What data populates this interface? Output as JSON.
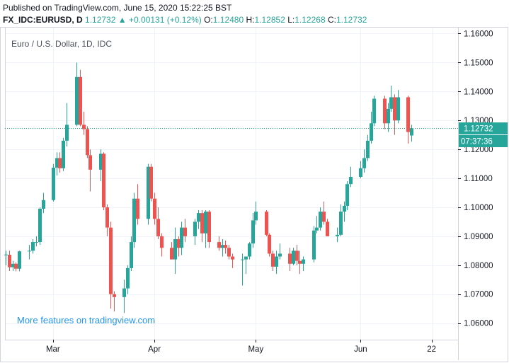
{
  "header": {
    "published": "Published on TradingView.com, June 15, 2020 15:22:25 BST",
    "symbol": "FX_IDC:EURUSD, D",
    "last": "1.12732",
    "change_arrow": "▲",
    "change": "+0.00131 (+0.12%)",
    "o_label": "O:",
    "o_value": "1.12480",
    "h_label": "H:",
    "h_value": "1.12852",
    "l_label": "L:",
    "l_value": "1.12268",
    "c_label": "C:",
    "c_value": "1.12732"
  },
  "promo": "More features on tradingview.com",
  "colors": {
    "up": "#26a69a",
    "down": "#ef5350",
    "grid": "#f0f3fa",
    "axis": "#131722",
    "promo": "#2196f3"
  },
  "chart_data": {
    "type": "candlestick",
    "title": "Euro / U.S. Dollar, 1D, IDC",
    "ylim": [
      1.0543,
      1.1623
    ],
    "y_ticks": [
      "1.16000",
      "1.15000",
      "1.14000",
      "1.13000",
      "1.12000",
      "1.11000",
      "1.10000",
      "1.09000",
      "1.08000",
      "1.07000",
      "1.06000"
    ],
    "y_tick_values": [
      1.16,
      1.15,
      1.14,
      1.13,
      1.12,
      1.11,
      1.1,
      1.09,
      1.08,
      1.07,
      1.06
    ],
    "x_ticks": [
      "Mar",
      "Apr",
      "May",
      "Jun",
      "22"
    ],
    "x_tick_dates": [
      "2020-03-02",
      "2020-04-01",
      "2020-05-01",
      "2020-06-01",
      "2020-06-22"
    ],
    "last_price": "1.12732",
    "last_price_value": 1.12732,
    "countdown": "07:37:36",
    "candles": [
      {
        "date": "2020-02-17",
        "o": 1.0836,
        "h": 1.085,
        "l": 1.08,
        "c": 1.0837
      },
      {
        "date": "2020-02-18",
        "o": 1.0836,
        "h": 1.085,
        "l": 1.078,
        "c": 1.0793
      },
      {
        "date": "2020-02-19",
        "o": 1.0793,
        "h": 1.0815,
        "l": 1.078,
        "c": 1.0805
      },
      {
        "date": "2020-02-20",
        "o": 1.0805,
        "h": 1.081,
        "l": 1.0779,
        "c": 1.0788
      },
      {
        "date": "2020-02-21",
        "o": 1.0788,
        "h": 1.085,
        "l": 1.0779,
        "c": 1.0848
      },
      {
        "date": "2020-02-24",
        "o": 1.0848,
        "h": 1.087,
        "l": 1.082,
        "c": 1.085
      },
      {
        "date": "2020-02-25",
        "o": 1.085,
        "h": 1.089,
        "l": 1.084,
        "c": 1.088
      },
      {
        "date": "2020-02-26",
        "o": 1.088,
        "h": 1.09,
        "l": 1.0865,
        "c": 1.088
      },
      {
        "date": "2020-02-27",
        "o": 1.088,
        "h": 1.1,
        "l": 1.087,
        "c": 1.0995
      },
      {
        "date": "2020-02-28",
        "o": 1.0995,
        "h": 1.105,
        "l": 1.098,
        "c": 1.1025
      },
      {
        "date": "2020-03-02",
        "o": 1.1025,
        "h": 1.115,
        "l": 1.102,
        "c": 1.1137
      },
      {
        "date": "2020-03-03",
        "o": 1.1137,
        "h": 1.119,
        "l": 1.111,
        "c": 1.117
      },
      {
        "date": "2020-03-04",
        "o": 1.117,
        "h": 1.119,
        "l": 1.112,
        "c": 1.1135
      },
      {
        "date": "2020-03-05",
        "o": 1.1135,
        "h": 1.124,
        "l": 1.1125,
        "c": 1.123
      },
      {
        "date": "2020-03-06",
        "o": 1.123,
        "h": 1.136,
        "l": 1.121,
        "c": 1.1285
      },
      {
        "date": "2020-03-09",
        "o": 1.1285,
        "h": 1.15,
        "l": 1.128,
        "c": 1.145
      },
      {
        "date": "2020-03-10",
        "o": 1.145,
        "h": 1.1475,
        "l": 1.128,
        "c": 1.1285
      },
      {
        "date": "2020-03-11",
        "o": 1.1285,
        "h": 1.133,
        "l": 1.125,
        "c": 1.127
      },
      {
        "date": "2020-03-12",
        "o": 1.127,
        "h": 1.128,
        "l": 1.117,
        "c": 1.118
      },
      {
        "date": "2020-03-13",
        "o": 1.118,
        "h": 1.12,
        "l": 1.1055,
        "c": 1.113
      },
      {
        "date": "2020-03-16",
        "o": 1.113,
        "h": 1.12,
        "l": 1.109,
        "c": 1.1185
      },
      {
        "date": "2020-03-17",
        "o": 1.1185,
        "h": 1.119,
        "l": 1.099,
        "c": 1.1
      },
      {
        "date": "2020-03-18",
        "o": 1.1,
        "h": 1.101,
        "l": 1.09,
        "c": 1.093
      },
      {
        "date": "2020-03-19",
        "o": 1.093,
        "h": 1.095,
        "l": 1.065,
        "c": 1.07
      },
      {
        "date": "2020-03-20",
        "o": 1.07,
        "h": 1.071,
        "l": 1.064,
        "c": 1.069
      },
      {
        "date": "2020-03-23",
        "o": 1.069,
        "h": 1.075,
        "l": 1.0635,
        "c": 1.072
      },
      {
        "date": "2020-03-24",
        "o": 1.072,
        "h": 1.08,
        "l": 1.07,
        "c": 1.079
      },
      {
        "date": "2020-03-25",
        "o": 1.079,
        "h": 1.09,
        "l": 1.078,
        "c": 1.088
      },
      {
        "date": "2020-03-26",
        "o": 1.088,
        "h": 1.105,
        "l": 1.086,
        "c": 1.103
      },
      {
        "date": "2020-03-27",
        "o": 1.103,
        "h": 1.108,
        "l": 1.094,
        "c": 1.096
      },
      {
        "date": "2020-03-30",
        "o": 1.096,
        "h": 1.115,
        "l": 1.094,
        "c": 1.114
      },
      {
        "date": "2020-03-31",
        "o": 1.114,
        "h": 1.115,
        "l": 1.102,
        "c": 1.103
      },
      {
        "date": "2020-04-01",
        "o": 1.103,
        "h": 1.105,
        "l": 1.094,
        "c": 1.096
      },
      {
        "date": "2020-04-02",
        "o": 1.096,
        "h": 1.1,
        "l": 1.089,
        "c": 1.09
      },
      {
        "date": "2020-04-03",
        "o": 1.09,
        "h": 1.091,
        "l": 1.083,
        "c": 1.086
      },
      {
        "date": "2020-04-06",
        "o": 1.086,
        "h": 1.088,
        "l": 1.082,
        "c": 1.082
      },
      {
        "date": "2020-04-07",
        "o": 1.082,
        "h": 1.093,
        "l": 1.077,
        "c": 1.089
      },
      {
        "date": "2020-04-08",
        "o": 1.089,
        "h": 1.09,
        "l": 1.083,
        "c": 1.086
      },
      {
        "date": "2020-04-09",
        "o": 1.086,
        "h": 1.095,
        "l": 1.0835,
        "c": 1.093
      },
      {
        "date": "2020-04-10",
        "o": 1.093,
        "h": 1.096,
        "l": 1.088,
        "c": 1.09
      },
      {
        "date": "2020-04-13",
        "o": 1.09,
        "h": 1.096,
        "l": 1.087,
        "c": 1.095
      },
      {
        "date": "2020-04-14",
        "o": 1.095,
        "h": 1.099,
        "l": 1.0925,
        "c": 1.098
      },
      {
        "date": "2020-04-15",
        "o": 1.098,
        "h": 1.099,
        "l": 1.088,
        "c": 1.091
      },
      {
        "date": "2020-04-16",
        "o": 1.091,
        "h": 1.099,
        "l": 1.086,
        "c": 1.0985
      },
      {
        "date": "2020-04-17",
        "o": 1.0985,
        "h": 1.099,
        "l": 1.086,
        "c": 1.088
      },
      {
        "date": "2020-04-20",
        "o": 1.088,
        "h": 1.09,
        "l": 1.085,
        "c": 1.086
      },
      {
        "date": "2020-04-21",
        "o": 1.086,
        "h": 1.089,
        "l": 1.083,
        "c": 1.087
      },
      {
        "date": "2020-04-22",
        "o": 1.087,
        "h": 1.0885,
        "l": 1.084,
        "c": 1.086
      },
      {
        "date": "2020-04-23",
        "o": 1.086,
        "h": 1.087,
        "l": 1.082,
        "c": 1.083
      },
      {
        "date": "2020-04-24",
        "o": 1.083,
        "h": 1.084,
        "l": 1.079,
        "c": 1.082
      },
      {
        "date": "2020-04-27",
        "o": 1.082,
        "h": 1.084,
        "l": 1.073,
        "c": 1.082
      },
      {
        "date": "2020-04-28",
        "o": 1.082,
        "h": 1.083,
        "l": 1.077,
        "c": 1.083
      },
      {
        "date": "2020-04-29",
        "o": 1.083,
        "h": 1.088,
        "l": 1.082,
        "c": 1.0875
      },
      {
        "date": "2020-04-30",
        "o": 1.0875,
        "h": 1.098,
        "l": 1.086,
        "c": 1.0955
      },
      {
        "date": "2020-05-01",
        "o": 1.0955,
        "h": 1.102,
        "l": 1.094,
        "c": 1.0985
      },
      {
        "date": "2020-05-04",
        "o": 1.0985,
        "h": 1.099,
        "l": 1.09,
        "c": 1.0905
      },
      {
        "date": "2020-05-05",
        "o": 1.0905,
        "h": 1.091,
        "l": 1.083,
        "c": 1.084
      },
      {
        "date": "2020-05-06",
        "o": 1.084,
        "h": 1.085,
        "l": 1.078,
        "c": 1.0795
      },
      {
        "date": "2020-05-07",
        "o": 1.0795,
        "h": 1.085,
        "l": 1.077,
        "c": 1.083
      },
      {
        "date": "2020-05-08",
        "o": 1.083,
        "h": 1.0875,
        "l": 1.082,
        "c": 1.084
      },
      {
        "date": "2020-05-11",
        "o": 1.084,
        "h": 1.086,
        "l": 1.078,
        "c": 1.0805
      },
      {
        "date": "2020-05-12",
        "o": 1.0805,
        "h": 1.086,
        "l": 1.08,
        "c": 1.085
      },
      {
        "date": "2020-05-13",
        "o": 1.085,
        "h": 1.087,
        "l": 1.08,
        "c": 1.0815
      },
      {
        "date": "2020-05-14",
        "o": 1.0815,
        "h": 1.085,
        "l": 1.077,
        "c": 1.0805
      },
      {
        "date": "2020-05-15",
        "o": 1.0805,
        "h": 1.083,
        "l": 1.078,
        "c": 1.082
      },
      {
        "date": "2020-05-18",
        "o": 1.082,
        "h": 1.0935,
        "l": 1.081,
        "c": 1.092
      },
      {
        "date": "2020-05-19",
        "o": 1.092,
        "h": 1.097,
        "l": 1.091,
        "c": 1.093
      },
      {
        "date": "2020-05-20",
        "o": 1.093,
        "h": 1.1,
        "l": 1.092,
        "c": 1.0985
      },
      {
        "date": "2020-05-21",
        "o": 1.0985,
        "h": 1.102,
        "l": 1.094,
        "c": 1.095
      },
      {
        "date": "2020-05-22",
        "o": 1.095,
        "h": 1.096,
        "l": 1.09,
        "c": 1.09
      },
      {
        "date": "2020-05-25",
        "o": 1.09,
        "h": 1.093,
        "l": 1.088,
        "c": 1.0905
      },
      {
        "date": "2020-05-26",
        "o": 1.0905,
        "h": 1.101,
        "l": 1.09,
        "c": 1.0985
      },
      {
        "date": "2020-05-27",
        "o": 1.0985,
        "h": 1.102,
        "l": 1.095,
        "c": 1.1005
      },
      {
        "date": "2020-05-28",
        "o": 1.1005,
        "h": 1.109,
        "l": 1.099,
        "c": 1.108
      },
      {
        "date": "2020-05-29",
        "o": 1.108,
        "h": 1.114,
        "l": 1.107,
        "c": 1.1105
      },
      {
        "date": "2020-06-01",
        "o": 1.1105,
        "h": 1.116,
        "l": 1.11,
        "c": 1.1135
      },
      {
        "date": "2020-06-02",
        "o": 1.1135,
        "h": 1.12,
        "l": 1.112,
        "c": 1.117
      },
      {
        "date": "2020-06-03",
        "o": 1.117,
        "h": 1.125,
        "l": 1.116,
        "c": 1.123
      },
      {
        "date": "2020-06-04",
        "o": 1.123,
        "h": 1.133,
        "l": 1.122,
        "c": 1.129
      },
      {
        "date": "2020-06-05",
        "o": 1.129,
        "h": 1.1385,
        "l": 1.128,
        "c": 1.1375
      },
      {
        "date": "2020-06-08",
        "o": 1.1375,
        "h": 1.1385,
        "l": 1.127,
        "c": 1.129
      },
      {
        "date": "2020-06-09",
        "o": 1.129,
        "h": 1.136,
        "l": 1.126,
        "c": 1.134
      },
      {
        "date": "2020-06-10",
        "o": 1.134,
        "h": 1.142,
        "l": 1.133,
        "c": 1.138
      },
      {
        "date": "2020-06-11",
        "o": 1.138,
        "h": 1.139,
        "l": 1.125,
        "c": 1.13
      },
      {
        "date": "2020-06-12",
        "o": 1.13,
        "h": 1.1405,
        "l": 1.129,
        "c": 1.138
      },
      {
        "date": "2020-06-15",
        "o": 1.138,
        "h": 1.1385,
        "l": 1.122,
        "c": 1.126
      },
      {
        "date": "2020-06-16",
        "o": 1.1248,
        "h": 1.1285,
        "l": 1.1227,
        "c": 1.1273
      }
    ]
  }
}
